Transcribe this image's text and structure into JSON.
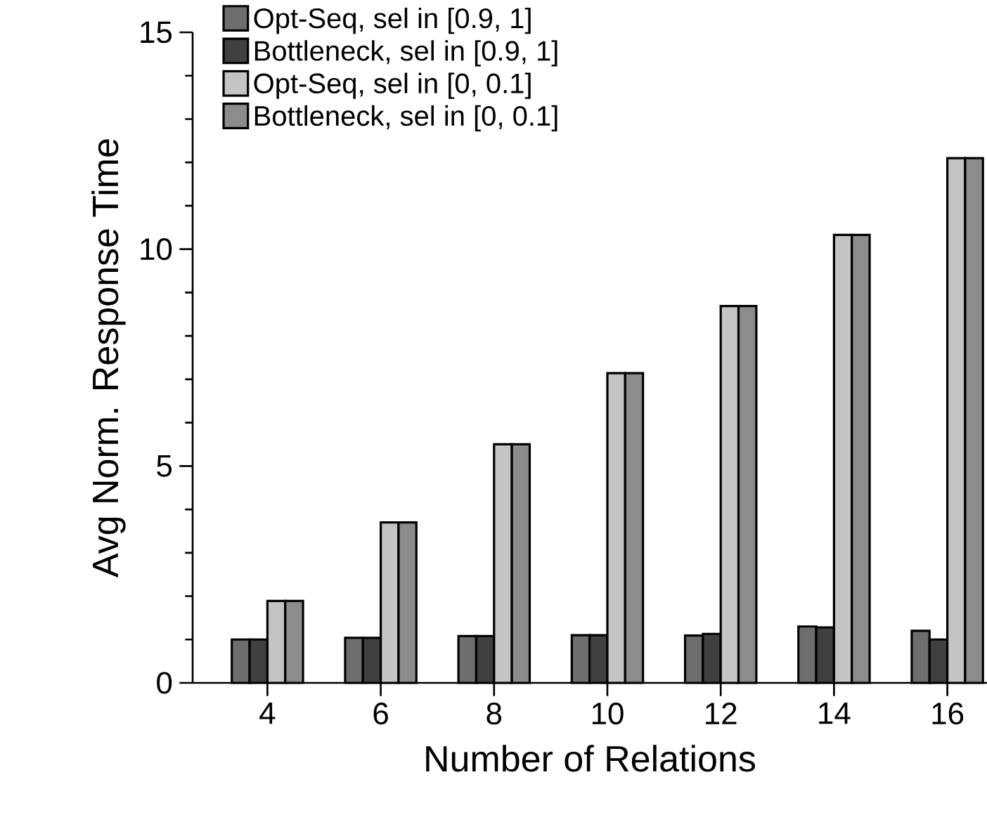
{
  "chart_data": {
    "type": "bar",
    "xlabel": "Number of Relations",
    "ylabel": "Avg Norm. Response Time",
    "categories": [
      "4",
      "6",
      "8",
      "10",
      "12",
      "14",
      "16"
    ],
    "series": [
      {
        "name": "Opt-Seq, sel in [0.9, 1]",
        "color": "#6e6e6e",
        "values": [
          1.0,
          1.04,
          1.08,
          1.1,
          1.09,
          1.3,
          1.2
        ]
      },
      {
        "name": "Bottleneck, sel in [0.9, 1]",
        "color": "#404040",
        "values": [
          1.0,
          1.04,
          1.08,
          1.1,
          1.13,
          1.28,
          1.0
        ]
      },
      {
        "name": "Opt-Seq, sel in [0, 0.1]",
        "color": "#c4c4c4",
        "values": [
          1.89,
          3.7,
          5.5,
          7.14,
          8.69,
          10.33,
          12.1
        ]
      },
      {
        "name": "Bottleneck, sel in [0, 0.1]",
        "color": "#8c8c8c",
        "values": [
          1.89,
          3.7,
          5.5,
          7.14,
          8.69,
          10.33,
          12.1
        ]
      }
    ],
    "ylim": [
      0,
      15
    ],
    "yticks": [
      0,
      5,
      10,
      15
    ],
    "grid": false,
    "legend": "top left"
  }
}
